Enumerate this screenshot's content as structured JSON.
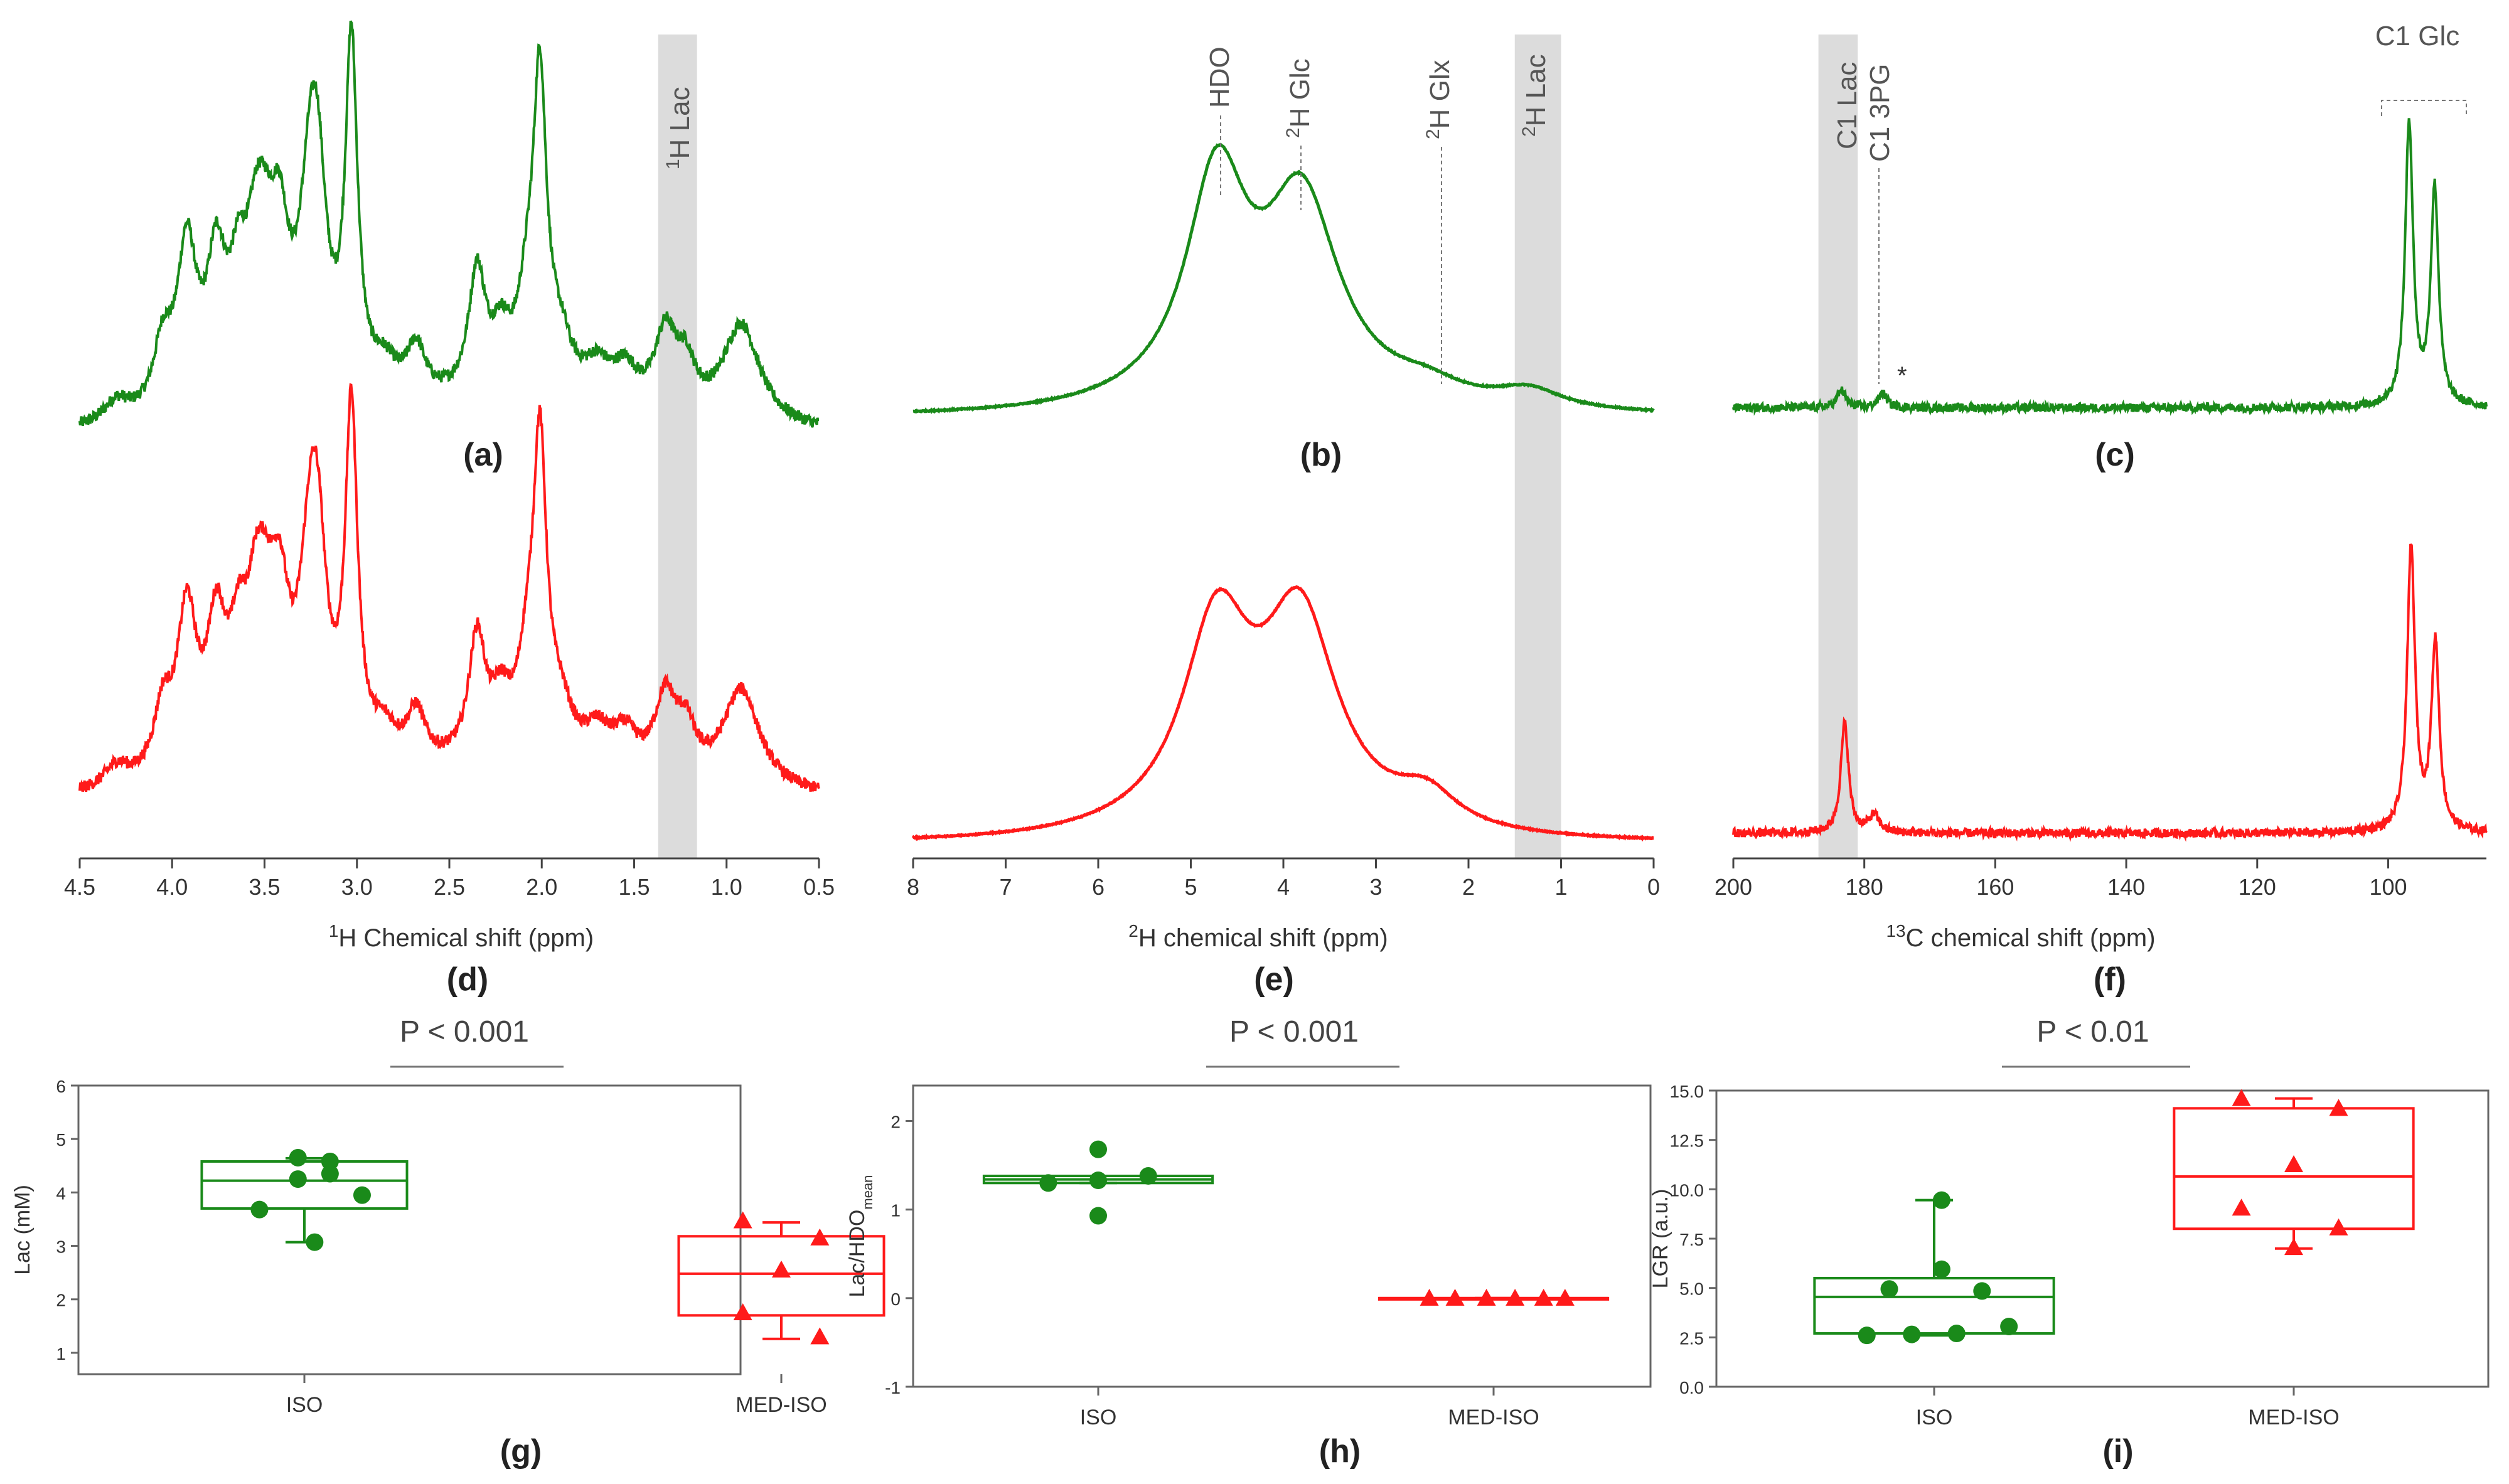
{
  "colors": {
    "iso": "#1a8a1a",
    "med_iso": "#ff1a1a",
    "shade": "#dcdcdc",
    "axis": "#444444",
    "label": "#333333"
  },
  "panels": {
    "a": "(a)",
    "b": "(b)",
    "c": "(c)",
    "d": "(d)",
    "e": "(e)",
    "f": "(f)",
    "g": "(g)",
    "h": "(h)",
    "i": "(i)"
  },
  "pvalues": {
    "g": "P < 0.001",
    "h": "P < 0.001",
    "i": "P < 0.01"
  },
  "peaks_h1": {
    "lac_sup": "1",
    "lac_txt": "H Lac"
  },
  "peaks_h2": {
    "hdo": "HDO",
    "sup": "2",
    "glc": "H Glc",
    "glx": "H Glx",
    "lac": "H Lac"
  },
  "peaks_c13": {
    "lac": "C1 Lac",
    "pg": "C1 3PG",
    "glc": "C1 Glc",
    "star": "*"
  },
  "chart_data": [
    {
      "id": "spectrum-1h",
      "type": "line",
      "xlabel_sup": "1",
      "xlabel": "H Chemical shift (ppm)",
      "xlim": [
        4.5,
        0.5
      ],
      "ticks": [
        "4.5",
        "4.0",
        "3.5",
        "3.0",
        "2.5",
        "2.0",
        "1.5",
        "1.0",
        "0.5"
      ],
      "highlight": [
        1.37,
        1.16
      ],
      "peaks": [
        {
          "x": 3.92,
          "h": 0.45,
          "w": 0.016
        },
        {
          "x": 3.76,
          "h": 0.38,
          "w": 0.016
        },
        {
          "x": 3.64,
          "h": 0.28,
          "w": 0.015
        },
        {
          "x": 3.55,
          "h": 0.3,
          "w": 0.015
        },
        {
          "x": 3.5,
          "h": 0.25,
          "w": 0.015
        },
        {
          "x": 3.42,
          "h": 0.4,
          "w": 0.016
        },
        {
          "x": 3.25,
          "h": 0.55,
          "w": 0.018
        },
        {
          "x": 3.21,
          "h": 0.35,
          "w": 0.014
        },
        {
          "x": 3.03,
          "h": 0.98,
          "w": 0.01
        },
        {
          "x": 2.68,
          "h": 0.14,
          "w": 0.015
        },
        {
          "x": 2.35,
          "h": 0.35,
          "w": 0.014
        },
        {
          "x": 2.22,
          "h": 0.15,
          "w": 0.016
        },
        {
          "x": 2.08,
          "h": 0.22,
          "w": 0.016
        },
        {
          "x": 2.01,
          "h": 0.85,
          "w": 0.011
        },
        {
          "x": 1.9,
          "h": 0.14,
          "w": 0.02
        },
        {
          "x": 1.7,
          "h": 0.1,
          "w": 0.022
        },
        {
          "x": 1.33,
          "h": 0.22,
          "w": 0.018
        },
        {
          "x": 1.22,
          "h": 0.12,
          "w": 0.015
        },
        {
          "x": 0.92,
          "h": 0.28,
          "w": 0.03
        },
        {
          "x": 4.05,
          "h": 0.18,
          "w": 0.015
        },
        {
          "x": 2.85,
          "h": 0.08,
          "w": 0.02
        },
        {
          "x": 1.55,
          "h": 0.1,
          "w": 0.02
        },
        {
          "x": 4.3,
          "h": 0.06,
          "w": 0.02
        }
      ]
    },
    {
      "id": "spectrum-2h",
      "type": "line",
      "xlabel_sup": "2",
      "xlabel": "H chemical shift (ppm)",
      "xlim": [
        8,
        0
      ],
      "ticks": [
        "8",
        "7",
        "6",
        "5",
        "4",
        "3",
        "2",
        "1",
        "0"
      ],
      "highlight": [
        1.5,
        1.0
      ],
      "iso_peaks": [
        {
          "x": 4.72,
          "h": 0.8,
          "w": 0.18
        },
        {
          "x": 3.8,
          "h": 0.72,
          "w": 0.22
        },
        {
          "x": 2.45,
          "h": 0.06,
          "w": 0.22
        },
        {
          "x": 1.35,
          "h": 0.07,
          "w": 0.2
        }
      ],
      "med_peaks": [
        {
          "x": 4.72,
          "h": 0.72,
          "w": 0.2
        },
        {
          "x": 3.82,
          "h": 0.75,
          "w": 0.22
        },
        {
          "x": 2.45,
          "h": 0.12,
          "w": 0.18
        }
      ]
    },
    {
      "id": "spectrum-13c",
      "type": "line",
      "xlabel_sup": "13",
      "xlabel": "C chemical shift (ppm)",
      "xlim": [
        200,
        85
      ],
      "ticks": [
        "200",
        "180",
        "160",
        "140",
        "120",
        "100"
      ],
      "tick_values": [
        200,
        180,
        160,
        140,
        120,
        100
      ],
      "highlight": [
        187,
        181
      ],
      "iso_peaks": [
        {
          "x": 183.5,
          "h": 0.06,
          "w": 0.5
        },
        {
          "x": 177.2,
          "h": 0.05,
          "w": 0.5
        },
        {
          "x": 96.8,
          "h": 0.98,
          "w": 0.45
        },
        {
          "x": 92.9,
          "h": 0.75,
          "w": 0.45
        }
      ],
      "med_peaks": [
        {
          "x": 183.0,
          "h": 0.38,
          "w": 0.45
        },
        {
          "x": 178.5,
          "h": 0.06,
          "w": 0.6
        },
        {
          "x": 96.5,
          "h": 0.98,
          "w": 0.45
        },
        {
          "x": 92.8,
          "h": 0.65,
          "w": 0.45
        }
      ]
    },
    {
      "id": "box-lac",
      "type": "box",
      "ylabel": "Lac (mM)",
      "ylim": [
        0.6,
        6
      ],
      "yticks": [
        "1",
        "2",
        "3",
        "4",
        "5",
        "6"
      ],
      "ytick_values": [
        1,
        2,
        3,
        4,
        5,
        6
      ],
      "categories": [
        "ISO",
        "MED-ISO"
      ],
      "groups": [
        {
          "name": "ISO",
          "q1": 3.7,
          "median": 4.22,
          "q3": 4.58,
          "wlo": 3.07,
          "whi": 4.64,
          "points": [
            [
              -0.35,
              3.68
            ],
            [
              -0.05,
              4.65
            ],
            [
              -0.05,
              4.25
            ],
            [
              0.08,
              3.07
            ],
            [
              0.2,
              4.58
            ],
            [
              0.2,
              4.35
            ],
            [
              0.45,
              3.95
            ]
          ]
        },
        {
          "name": "MED-ISO",
          "q1": 1.7,
          "median": 2.48,
          "q3": 3.18,
          "wlo": 1.26,
          "whi": 3.44,
          "points": [
            [
              -0.3,
              3.47
            ],
            [
              -0.3,
              1.75
            ],
            [
              0.0,
              2.55
            ],
            [
              0.3,
              3.15
            ],
            [
              0.3,
              1.3
            ]
          ]
        }
      ]
    },
    {
      "id": "box-lac-hdo",
      "type": "box",
      "ylabel": "Lac/HDO",
      "ylabel_sub": "mean",
      "ylim": [
        -1,
        2.4
      ],
      "yticks": [
        "-1",
        "0",
        "1",
        "2"
      ],
      "ytick_values": [
        -1,
        0,
        1,
        2
      ],
      "categories": [
        "ISO",
        "MED-ISO"
      ],
      "groups": [
        {
          "name": "ISO",
          "q1": 1.3,
          "median": 1.34,
          "q3": 1.38,
          "wlo": 1.3,
          "whi": 1.38,
          "points": [
            [
              -0.35,
              1.3
            ],
            [
              0.0,
              1.68
            ],
            [
              0.0,
              1.33
            ],
            [
              0.0,
              0.93
            ],
            [
              0.35,
              1.38
            ]
          ]
        },
        {
          "name": "MED-ISO",
          "q1": 0.0,
          "median": 0.0,
          "q3": 0.0,
          "wlo": 0.0,
          "whi": 0.0,
          "points": [
            [
              -0.45,
              0.0
            ],
            [
              -0.27,
              0.0
            ],
            [
              -0.05,
              0.0
            ],
            [
              0.15,
              0.0
            ],
            [
              0.35,
              0.0
            ],
            [
              0.5,
              0.0
            ]
          ]
        }
      ]
    },
    {
      "id": "box-lgr",
      "type": "box",
      "ylabel": "LGR (a.u.)",
      "ylim": [
        0,
        15
      ],
      "yticks": [
        "0.0",
        "2.5",
        "5.0",
        "7.5",
        "10.0",
        "12.5",
        "15.0"
      ],
      "ytick_values": [
        0,
        2.5,
        5,
        7.5,
        10,
        12.5,
        15
      ],
      "categories": [
        "ISO",
        "MED-ISO"
      ],
      "groups": [
        {
          "name": "ISO",
          "q1": 2.7,
          "median": 4.55,
          "q3": 5.5,
          "wlo": 2.6,
          "whi": 9.45,
          "points": [
            [
              -0.45,
              2.6
            ],
            [
              -0.3,
              4.95
            ],
            [
              -0.15,
              2.65
            ],
            [
              0.05,
              9.45
            ],
            [
              0.05,
              5.95
            ],
            [
              0.15,
              2.7
            ],
            [
              0.32,
              4.85
            ],
            [
              0.5,
              3.05
            ]
          ]
        },
        {
          "name": "MED-ISO",
          "q1": 8.0,
          "median": 10.65,
          "q3": 14.1,
          "wlo": 7.0,
          "whi": 14.6,
          "points": [
            [
              -0.35,
              14.6
            ],
            [
              -0.35,
              9.05
            ],
            [
              0.0,
              11.25
            ],
            [
              0.0,
              7.05
            ],
            [
              0.3,
              14.1
            ],
            [
              0.3,
              8.05
            ]
          ]
        }
      ]
    }
  ]
}
